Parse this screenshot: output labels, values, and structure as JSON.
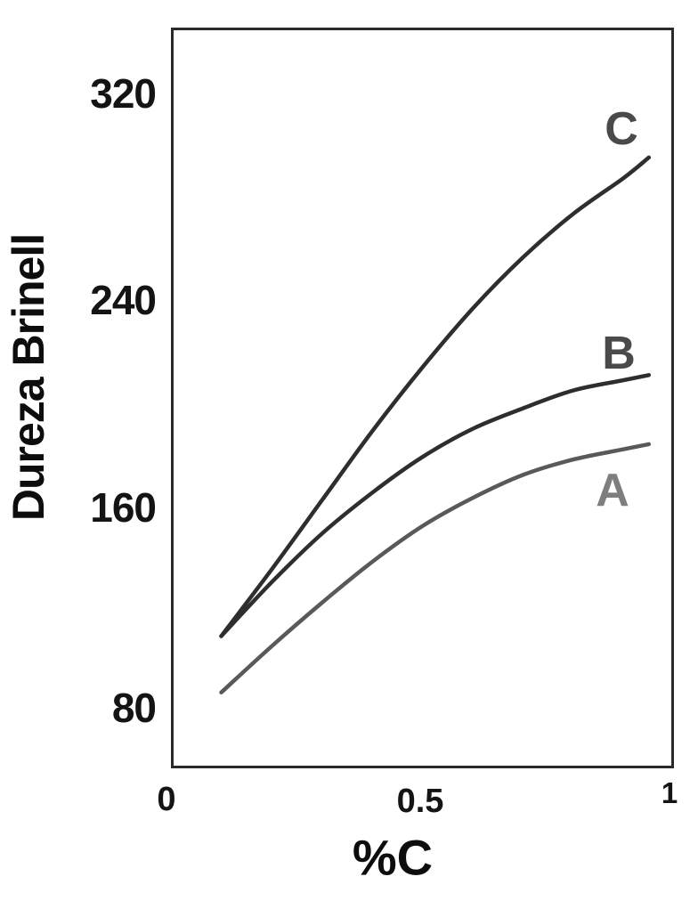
{
  "figure": {
    "background": "#ffffff",
    "frame_color": "#2a2a2a",
    "text_color": "#141414"
  },
  "chart_data": {
    "type": "line",
    "title": "",
    "xlabel": "%C",
    "ylabel": "Dureza Brinell",
    "x_tick_labels": [
      "0",
      "0.5",
      "1"
    ],
    "x_tick_values": [
      0,
      0.5,
      1
    ],
    "y_tick_labels": [
      "80",
      "160",
      "240",
      "320"
    ],
    "y_tick_values": [
      80,
      160,
      240,
      320
    ],
    "xlim": [
      0,
      1
    ],
    "ylim": [
      57,
      346
    ],
    "grid": false,
    "legend_position": "inline-labels-at-curve-ends",
    "x": [
      0.1,
      0.2,
      0.3,
      0.4,
      0.5,
      0.6,
      0.7,
      0.8,
      0.9,
      0.95
    ],
    "series": [
      {
        "name": "A",
        "color": "#595959",
        "label_color": "#7e7e7e",
        "values": [
          86,
          104,
          121,
          137,
          151,
          162,
          171,
          177,
          181,
          183
        ]
      },
      {
        "name": "B",
        "color": "#2e2e2e",
        "label_color": "#4a4a4a",
        "values": [
          108,
          129,
          148,
          164,
          178,
          189,
          197,
          204,
          208,
          210
        ]
      },
      {
        "name": "C",
        "color": "#2e2e2e",
        "label_color": "#4a4a4a",
        "values": [
          108,
          134,
          161,
          188,
          213,
          236,
          256,
          273,
          287,
          295
        ]
      }
    ]
  }
}
